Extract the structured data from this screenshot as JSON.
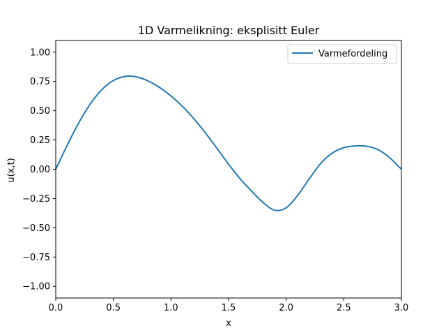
{
  "chart_data": {
    "type": "line",
    "title": "1D Varmelikning: eksplisitt Euler",
    "xlabel": "x",
    "ylabel": "u(x,t)",
    "xlim": [
      0,
      3
    ],
    "ylim": [
      -1.1,
      1.1
    ],
    "xticks": [
      0.0,
      0.5,
      1.0,
      1.5,
      2.0,
      2.5,
      3.0
    ],
    "xtick_labels": [
      "0.0",
      "0.5",
      "1.0",
      "1.5",
      "2.0",
      "2.5",
      "3.0"
    ],
    "yticks": [
      -1.0,
      -0.75,
      -0.5,
      -0.25,
      0.0,
      0.25,
      0.5,
      0.75,
      1.0
    ],
    "ytick_labels": [
      "−1.00",
      "−0.75",
      "−0.50",
      "−0.25",
      "0.00",
      "0.25",
      "0.50",
      "0.75",
      "1.00"
    ],
    "grid": false,
    "legend_position": "top-right",
    "series": [
      {
        "name": "Varmefordeling",
        "color": "#1f77b4",
        "x": [
          0.0,
          0.1,
          0.2,
          0.3,
          0.4,
          0.5,
          0.6,
          0.7,
          0.8,
          0.9,
          1.0,
          1.1,
          1.2,
          1.3,
          1.4,
          1.5,
          1.6,
          1.7,
          1.8,
          1.9,
          2.0,
          2.1,
          2.2,
          2.3,
          2.4,
          2.5,
          2.6,
          2.7,
          2.8,
          2.9,
          3.0
        ],
        "y": [
          0.0,
          0.206,
          0.397,
          0.558,
          0.68,
          0.758,
          0.793,
          0.789,
          0.755,
          0.699,
          0.626,
          0.537,
          0.43,
          0.309,
          0.177,
          0.043,
          -0.081,
          -0.187,
          -0.285,
          -0.35,
          -0.329,
          -0.223,
          -0.082,
          0.05,
          0.138,
          0.184,
          0.199,
          0.196,
          0.166,
          0.097,
          0.0
        ]
      }
    ]
  }
}
